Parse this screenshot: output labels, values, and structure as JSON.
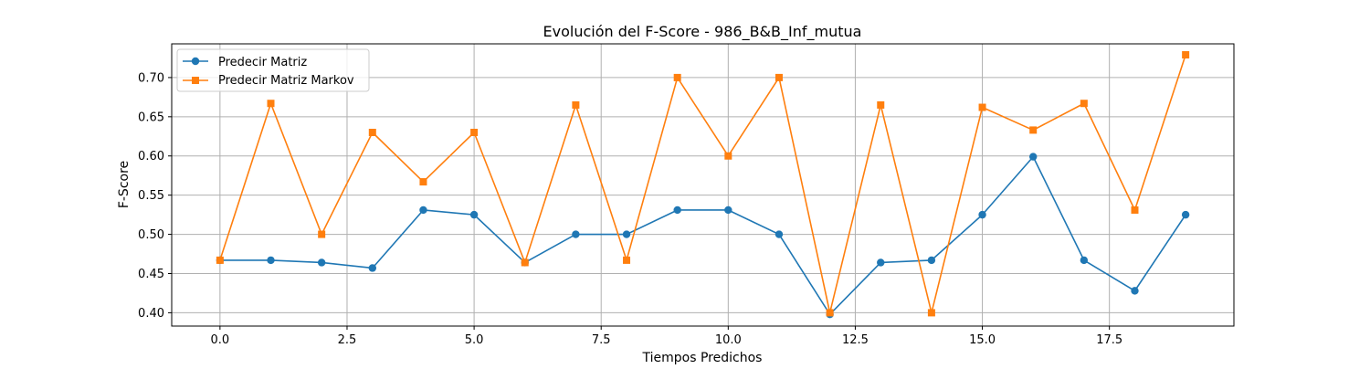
{
  "chart_data": {
    "type": "line",
    "title": "Evolución del F-Score - 986_B&B_Inf_mutua",
    "xlabel": "Tiempos Predichos",
    "ylabel": "F-Score",
    "xlim": [
      -0.95,
      19.95
    ],
    "ylim": [
      0.383,
      0.743
    ],
    "x_ticks": [
      0.0,
      2.5,
      5.0,
      7.5,
      10.0,
      12.5,
      15.0,
      17.5
    ],
    "x_tick_labels": [
      "0.0",
      "2.5",
      "5.0",
      "7.5",
      "10.0",
      "12.5",
      "15.0",
      "17.5"
    ],
    "y_ticks": [
      0.4,
      0.45,
      0.5,
      0.55,
      0.6,
      0.65,
      0.7
    ],
    "y_tick_labels": [
      "0.40",
      "0.45",
      "0.50",
      "0.55",
      "0.60",
      "0.65",
      "0.70"
    ],
    "grid": true,
    "legend_position": "top-left",
    "x": [
      0,
      1,
      2,
      3,
      4,
      5,
      6,
      7,
      8,
      9,
      10,
      11,
      12,
      13,
      14,
      15,
      16,
      17,
      18,
      19
    ],
    "series": [
      {
        "name": "Predecir Matriz",
        "color": "#1f77b4",
        "marker": "circle",
        "values": [
          0.467,
          0.467,
          0.464,
          0.457,
          0.531,
          0.525,
          0.464,
          0.5,
          0.5,
          0.531,
          0.531,
          0.5,
          0.398,
          0.464,
          0.467,
          0.525,
          0.599,
          0.467,
          0.428,
          0.525
        ]
      },
      {
        "name": "Predecir Matriz Markov",
        "color": "#ff7f0e",
        "marker": "square",
        "values": [
          0.467,
          0.667,
          0.5,
          0.63,
          0.567,
          0.63,
          0.464,
          0.665,
          0.467,
          0.7,
          0.6,
          0.7,
          0.4,
          0.665,
          0.4,
          0.662,
          0.633,
          0.667,
          0.531,
          0.729
        ]
      }
    ]
  }
}
